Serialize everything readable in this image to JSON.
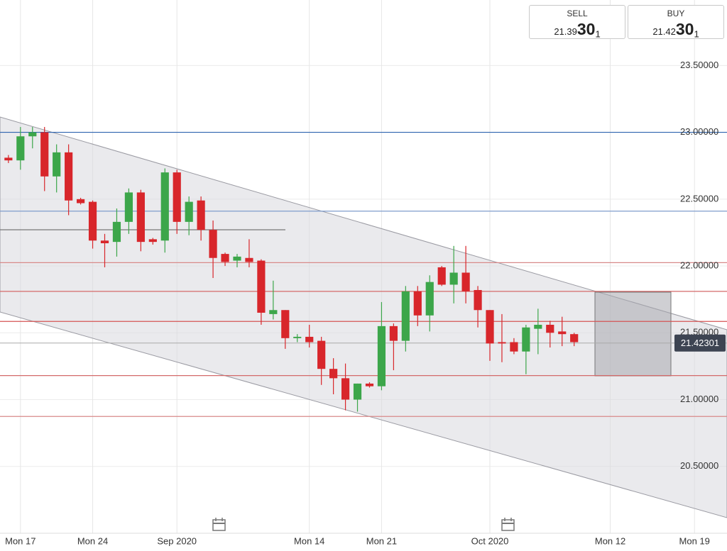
{
  "chart_data": {
    "type": "candlestick",
    "categories": [
      null,
      null,
      null,
      null,
      null,
      null,
      null,
      null,
      null,
      null,
      null,
      null,
      null,
      null,
      null,
      null,
      null,
      null,
      null,
      null,
      null,
      null,
      null,
      null,
      null,
      null,
      null,
      null,
      null,
      null,
      null,
      null,
      null,
      null,
      null,
      null,
      null,
      null,
      null,
      null,
      null,
      null,
      null,
      null,
      null,
      null,
      null,
      null
    ],
    "open": [
      22.81,
      22.79,
      22.97,
      23.0,
      22.67,
      22.85,
      22.5,
      22.48,
      22.19,
      22.18,
      22.33,
      22.55,
      22.2,
      22.19,
      22.7,
      22.33,
      22.49,
      22.27,
      22.09,
      22.04,
      22.06,
      22.04,
      21.64,
      21.67,
      21.46,
      21.47,
      21.44,
      21.23,
      21.16,
      21.0,
      21.12,
      21.1,
      21.55,
      21.44,
      21.81,
      21.63,
      21.99,
      21.86,
      21.95,
      21.82,
      21.67,
      21.43,
      21.43,
      21.36,
      21.53,
      21.56,
      21.51,
      21.49
    ],
    "close": [
      22.79,
      22.97,
      23.0,
      22.67,
      22.85,
      22.49,
      22.47,
      22.19,
      22.17,
      22.33,
      22.55,
      22.18,
      22.18,
      22.7,
      22.33,
      22.48,
      22.27,
      22.06,
      22.03,
      22.07,
      22.03,
      21.65,
      21.67,
      21.46,
      21.47,
      21.43,
      21.23,
      21.16,
      21.0,
      21.12,
      21.1,
      21.55,
      21.44,
      21.81,
      21.63,
      21.88,
      21.86,
      21.95,
      21.81,
      21.67,
      21.42,
      21.42,
      21.36,
      21.54,
      21.56,
      21.5,
      21.49,
      21.43
    ],
    "high": [
      22.83,
      23.04,
      23.04,
      23.04,
      22.91,
      22.91,
      22.51,
      22.49,
      22.24,
      22.43,
      22.58,
      22.57,
      22.21,
      22.73,
      22.72,
      22.52,
      22.52,
      22.34,
      22.1,
      22.09,
      22.2,
      22.05,
      21.89,
      21.67,
      21.49,
      21.56,
      21.47,
      21.31,
      21.27,
      21.12,
      21.13,
      21.73,
      21.57,
      21.85,
      21.85,
      21.93,
      22.0,
      22.15,
      22.15,
      21.85,
      21.67,
      21.64,
      21.46,
      21.56,
      21.68,
      21.59,
      21.62,
      21.5
    ],
    "low": [
      22.77,
      22.72,
      22.88,
      22.56,
      22.55,
      22.38,
      22.46,
      22.13,
      21.99,
      22.07,
      22.24,
      22.11,
      22.16,
      22.1,
      22.24,
      22.23,
      22.19,
      21.91,
      22.0,
      21.99,
      21.99,
      21.56,
      21.6,
      21.38,
      21.43,
      21.39,
      21.11,
      21.04,
      20.92,
      20.91,
      21.09,
      21.07,
      21.22,
      21.36,
      21.55,
      21.51,
      21.85,
      21.72,
      21.72,
      21.54,
      21.29,
      21.28,
      21.34,
      21.19,
      21.34,
      21.39,
      21.4,
      21.4
    ],
    "up_color": "#3ca64a",
    "down_color": "#d8262b",
    "xlim": [
      -0.7,
      59.7
    ],
    "xticks": [
      {
        "value": 1,
        "label": "Mon 17"
      },
      {
        "value": 7,
        "label": "Mon 24"
      },
      {
        "value": 14,
        "label": "Sep 2020"
      },
      {
        "value": 25,
        "label": "Mon 14"
      },
      {
        "value": 31,
        "label": "Mon 21"
      },
      {
        "value": 40,
        "label": "Oct 2020"
      },
      {
        "value": 50,
        "label": "Mon 12"
      },
      {
        "value": 57,
        "label": "Mon 19"
      }
    ],
    "ylim": [
      20.0,
      23.99
    ],
    "yticks": [
      {
        "value": 20.5,
        "label": "20.50000"
      },
      {
        "value": 21.0,
        "label": "21.00000"
      },
      {
        "value": 21.5,
        "label": "21.50000"
      },
      {
        "value": 22.0,
        "label": "22.00000"
      },
      {
        "value": 22.5,
        "label": "22.50000"
      },
      {
        "value": 23.0,
        "label": "23.00000"
      },
      {
        "value": 23.5,
        "label": "23.50000"
      }
    ],
    "grid": true,
    "hlines": [
      {
        "value": 23.0,
        "color": "#2e64b0"
      },
      {
        "value": 22.41,
        "color": "#7f9ccc"
      },
      {
        "value": 22.025,
        "color": "#d88a8a"
      },
      {
        "value": 21.81,
        "color": "#d46a6a"
      },
      {
        "value": 21.585,
        "color": "#d45555"
      },
      {
        "value": 21.18,
        "color": "#d46a6a"
      },
      {
        "value": 20.874,
        "color": "#d88a8a"
      }
    ],
    "last_price": {
      "value": 21.42301,
      "label": "21.42301"
    }
  },
  "widget": {
    "sell": {
      "label": "SELL",
      "price": "21.39",
      "pips": "30",
      "fraction": "1"
    },
    "buy": {
      "label": "BUY",
      "price": "21.42",
      "pips": "30",
      "fraction": "1"
    }
  }
}
